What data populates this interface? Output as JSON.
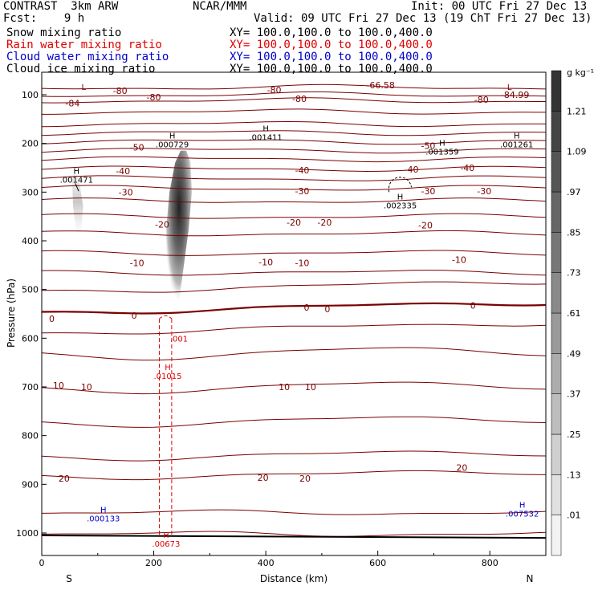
{
  "header": {
    "title": "CONTRAST  3km ARW",
    "center": "NCAR/MMM",
    "init": "Init: 00 UTC Fri 27 Dec 13",
    "fcst": "Fcst:    9 h",
    "valid": "Valid: 09 UTC Fri 27 Dec 13 (19 ChT Fri 27 Dec 13)",
    "fields": [
      {
        "name": "Snow mixing ratio",
        "xy": "XY= 100.0,100.0 to 100.0,400.0",
        "color": "#000000"
      },
      {
        "name": "Rain water mixing ratio",
        "xy": "XY= 100.0,100.0 to 100.0,400.0",
        "color": "#e00000"
      },
      {
        "name": "Cloud water mixing ratio",
        "xy": "XY= 100.0,100.0 to 100.0,400.0",
        "color": "#0000cc"
      },
      {
        "name": "Cloud ice mixing ratio",
        "xy": "XY= 100.0,100.0 to 100.0,400.0",
        "color": "#000000"
      }
    ]
  },
  "chart_data": {
    "type": "cross-section",
    "xlabel": "Distance (km)",
    "ylabel": "Pressure (hPa)",
    "xlim": [
      0,
      900
    ],
    "ylim": [
      1050,
      30
    ],
    "xticks": [
      0,
      200,
      400,
      600,
      800
    ],
    "yticks": [
      100,
      200,
      300,
      400,
      500,
      600,
      700,
      800,
      900,
      1000
    ],
    "end_labels": {
      "left": "S",
      "right": "N"
    },
    "colorbar": {
      "unit": "g kg⁻¹",
      "ticks": [
        "1.21",
        "1.09",
        ".97",
        ".85",
        ".73",
        ".61",
        ".49",
        ".37",
        ".25",
        ".13",
        ".01"
      ],
      "colors": [
        "#f2f2f2",
        "#e0e0e0",
        "#cfcfcf",
        "#bdbdbd",
        "#acacac",
        "#9a9a9a",
        "#898989",
        "#777777",
        "#666666",
        "#555555",
        "#444444",
        "#333333"
      ]
    },
    "temperature_contours": {
      "color": "#7a0000",
      "labels": [
        {
          "text": "-84",
          "x": 55,
          "p": 117
        },
        {
          "text": "-80",
          "x": 140,
          "p": 92
        },
        {
          "text": "-80",
          "x": 200,
          "p": 105
        },
        {
          "text": "-80",
          "x": 415,
          "p": 90
        },
        {
          "text": "-80",
          "x": 460,
          "p": 108
        },
        {
          "text": "-80",
          "x": 785,
          "p": 110
        },
        {
          "text": "-66.58",
          "x": 605,
          "p": 80
        },
        {
          "text": "-84.99",
          "x": 845,
          "p": 100
        },
        {
          "text": "-50",
          "x": 170,
          "p": 208
        },
        {
          "text": "-50",
          "x": 690,
          "p": 205
        },
        {
          "text": "-40",
          "x": 145,
          "p": 257
        },
        {
          "text": "-40",
          "x": 465,
          "p": 255
        },
        {
          "text": "-40",
          "x": 660,
          "p": 253
        },
        {
          "text": "-40",
          "x": 760,
          "p": 250
        },
        {
          "text": "-30",
          "x": 150,
          "p": 300
        },
        {
          "text": "-30",
          "x": 465,
          "p": 298
        },
        {
          "text": "-30",
          "x": 690,
          "p": 298
        },
        {
          "text": "-30",
          "x": 790,
          "p": 298
        },
        {
          "text": "-20",
          "x": 215,
          "p": 366
        },
        {
          "text": "-20",
          "x": 450,
          "p": 362
        },
        {
          "text": "-20",
          "x": 505,
          "p": 362
        },
        {
          "text": "-20",
          "x": 685,
          "p": 368
        },
        {
          "text": "-10",
          "x": 170,
          "p": 445
        },
        {
          "text": "-10",
          "x": 400,
          "p": 444
        },
        {
          "text": "-10",
          "x": 465,
          "p": 445
        },
        {
          "text": "-10",
          "x": 745,
          "p": 439
        },
        {
          "text": "0",
          "x": 18,
          "p": 560
        },
        {
          "text": "0",
          "x": 165,
          "p": 553
        },
        {
          "text": "0",
          "x": 473,
          "p": 537
        },
        {
          "text": "0",
          "x": 510,
          "p": 540
        },
        {
          "text": "0",
          "x": 770,
          "p": 533
        },
        {
          "text": "10",
          "x": 30,
          "p": 697
        },
        {
          "text": "10",
          "x": 80,
          "p": 700
        },
        {
          "text": "10",
          "x": 433,
          "p": 700
        },
        {
          "text": "10",
          "x": 480,
          "p": 700
        },
        {
          "text": "20",
          "x": 40,
          "p": 888
        },
        {
          "text": "20",
          "x": 395,
          "p": 886
        },
        {
          "text": "20",
          "x": 470,
          "p": 888
        },
        {
          "text": "20",
          "x": 750,
          "p": 866
        }
      ]
    },
    "extrema": [
      {
        "letter": "L",
        "value": "",
        "x": 75,
        "p": 90,
        "color": "#7a0000"
      },
      {
        "letter": "L",
        "value": "",
        "x": 835,
        "p": 90,
        "color": "#7a0000"
      },
      {
        "letter": "H",
        "value": ".000729",
        "x": 233,
        "p": 190,
        "color": "#000000"
      },
      {
        "letter": "H",
        "value": ".001411",
        "x": 400,
        "p": 175,
        "color": "#000000"
      },
      {
        "letter": "H",
        "value": ".001359",
        "x": 715,
        "p": 205,
        "color": "#000000"
      },
      {
        "letter": "H",
        "value": ".001261",
        "x": 848,
        "p": 190,
        "color": "#000000"
      },
      {
        "letter": "H",
        "value": ".001471",
        "x": 62,
        "p": 262,
        "color": "#000000"
      },
      {
        "letter": "H",
        "value": ".002335",
        "x": 640,
        "p": 315,
        "color": "#000000"
      },
      {
        "letter": "H",
        "value": ".01015",
        "x": 225,
        "p": 665,
        "color": "#e00000"
      },
      {
        "letter": "H",
        "value": ".00673",
        "x": 222,
        "p": 1010,
        "color": "#e00000"
      },
      {
        "letter": "H",
        "value": ".000133",
        "x": 110,
        "p": 958,
        "color": "#0000cc"
      },
      {
        "letter": "H",
        "value": ".007532",
        "x": 858,
        "p": 948,
        "color": "#0000cc"
      }
    ],
    "rain_contour_label": {
      "text": ".001",
      "x": 245,
      "p": 600
    }
  }
}
